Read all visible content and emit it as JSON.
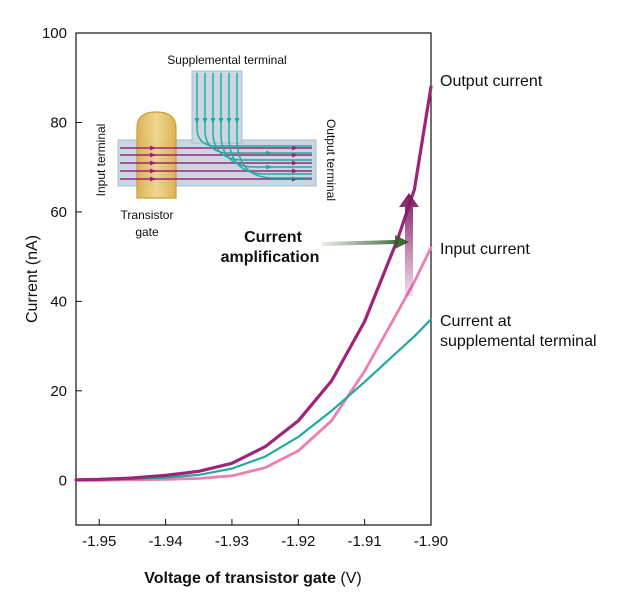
{
  "chart_data": {
    "type": "line",
    "xlabel_main": "Voltage of transistor gate",
    "xlabel_unit": " (V)",
    "ylabel": "Current (nA)",
    "xlim": [
      -1.9535,
      -1.9
    ],
    "ylim": [
      -10,
      100
    ],
    "x_ticks": [
      "-1.95",
      "-1.94",
      "-1.93",
      "-1.92",
      "-1.91",
      "-1.90"
    ],
    "x_tick_values": [
      -1.95,
      -1.94,
      -1.93,
      -1.92,
      -1.91,
      -1.9
    ],
    "y_ticks": [
      "0",
      "20",
      "40",
      "60",
      "80",
      "100"
    ],
    "y_tick_values": [
      0,
      20,
      40,
      60,
      80,
      100
    ],
    "grid": false,
    "series": [
      {
        "name": "Output current",
        "color": "#a0237a",
        "points": [
          [
            -1.9535,
            0.1
          ],
          [
            -1.95,
            0.2
          ],
          [
            -1.945,
            0.5
          ],
          [
            -1.94,
            1.1
          ],
          [
            -1.935,
            2.0
          ],
          [
            -1.93,
            3.8
          ],
          [
            -1.925,
            7.5
          ],
          [
            -1.92,
            13.3
          ],
          [
            -1.915,
            22.2
          ],
          [
            -1.91,
            35.5
          ],
          [
            -1.905,
            54.0
          ],
          [
            -1.9025,
            65.0
          ],
          [
            -1.9,
            88.0
          ]
        ]
      },
      {
        "name": "Input current",
        "color": "#ec7fb0",
        "points": [
          [
            -1.9535,
            0
          ],
          [
            -1.95,
            0
          ],
          [
            -1.945,
            0.1
          ],
          [
            -1.94,
            0.2
          ],
          [
            -1.935,
            0.4
          ],
          [
            -1.93,
            1.0
          ],
          [
            -1.925,
            2.8
          ],
          [
            -1.92,
            6.6
          ],
          [
            -1.915,
            13.3
          ],
          [
            -1.91,
            24.4
          ],
          [
            -1.905,
            37.7
          ],
          [
            -1.9025,
            44.4
          ],
          [
            -1.9,
            52.0
          ]
        ]
      },
      {
        "name": "Current at supplemental terminal",
        "color": "#1fa9a0",
        "points": [
          [
            -1.9535,
            0.1
          ],
          [
            -1.95,
            0.1
          ],
          [
            -1.945,
            0.3
          ],
          [
            -1.94,
            0.6
          ],
          [
            -1.935,
            1.2
          ],
          [
            -1.93,
            2.6
          ],
          [
            -1.925,
            5.3
          ],
          [
            -1.92,
            9.7
          ],
          [
            -1.915,
            15.5
          ],
          [
            -1.91,
            22.0
          ],
          [
            -1.905,
            28.8
          ],
          [
            -1.9025,
            32.2
          ],
          [
            -1.9,
            36.0
          ]
        ]
      }
    ],
    "annotations": {
      "output": "Output current",
      "input": "Input current",
      "supp_line1": "Current at",
      "supp_line2": "supplemental terminal",
      "amp_line1": "Current",
      "amp_line2": "amplification"
    }
  },
  "inset": {
    "supplemental": "Supplemental terminal",
    "input": "Input terminal",
    "output": "Output terminal",
    "gate_line1": "Transistor",
    "gate_line2": "gate"
  },
  "colors": {
    "output": "#a0237a",
    "input": "#ec7fb0",
    "supplemental": "#1fa9a0",
    "gate": "#e2c36e",
    "channel": "#c8d7e2"
  }
}
